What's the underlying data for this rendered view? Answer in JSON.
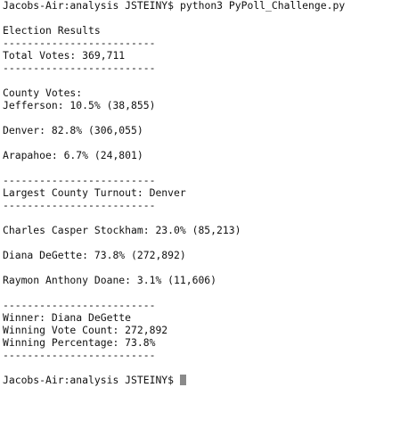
{
  "prompt": "Jacobs-Air:analysis JSTEINY$",
  "command": "python3 PyPoll_Challenge.py",
  "title": "Election Results",
  "separator": "-------------------------",
  "total_votes": "Total Votes: 369,711",
  "county_header": "County Votes:",
  "counties": [
    "Jefferson: 10.5% (38,855)",
    "Denver: 82.8% (306,055)",
    "Arapahoe: 6.7% (24,801)"
  ],
  "largest_county": "Largest County Turnout: Denver",
  "candidates": [
    "Charles Casper Stockham: 23.0% (85,213)",
    "Diana DeGette: 73.8% (272,892)",
    "Raymon Anthony Doane: 3.1% (11,606)"
  ],
  "winner": "Winner: Diana DeGette",
  "winning_count": "Winning Vote Count: 272,892",
  "winning_percentage": "Winning Percentage: 73.8%"
}
